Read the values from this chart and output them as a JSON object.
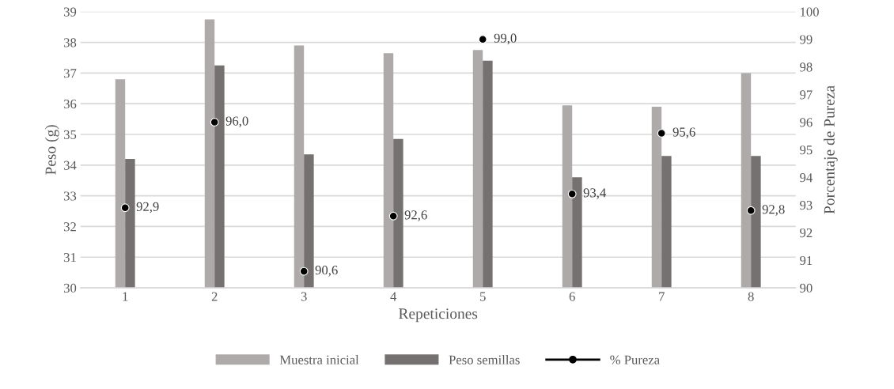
{
  "chart_data": {
    "type": "bar",
    "xlabel": "Repeticiones",
    "ylabel": "Peso (g)",
    "y2label": "Porcentaje de Pureza",
    "categories": [
      "1",
      "2",
      "3",
      "4",
      "5",
      "6",
      "7",
      "8"
    ],
    "series": [
      {
        "name": "Muestra inicial",
        "color": "#aeaaaa",
        "values": [
          36.8,
          38.75,
          37.9,
          37.65,
          37.75,
          35.95,
          35.9,
          37.0
        ]
      },
      {
        "name": "Peso semillas",
        "color": "#767171",
        "values": [
          34.2,
          37.25,
          34.35,
          34.85,
          37.4,
          33.6,
          34.3,
          34.3
        ]
      },
      {
        "name": "% Pureza",
        "type": "scatter",
        "axis": "y2",
        "color": "#000000",
        "marker": "circle",
        "values": [
          92.9,
          96.0,
          90.6,
          92.6,
          99.0,
          93.4,
          95.6,
          92.8
        ],
        "value_labels": [
          "92,9",
          "96,0",
          "90,6",
          "92,6",
          "99,0",
          "93,4",
          "95,6",
          "92,8"
        ]
      }
    ],
    "ylim": [
      30,
      39
    ],
    "yticks": [
      30,
      31,
      32,
      33,
      34,
      35,
      36,
      37,
      38,
      39
    ],
    "y2lim": [
      90,
      100
    ],
    "y2ticks": [
      90,
      91,
      92,
      93,
      94,
      95,
      96,
      97,
      98,
      99,
      100
    ],
    "grid": "y",
    "legend": "bottom"
  }
}
